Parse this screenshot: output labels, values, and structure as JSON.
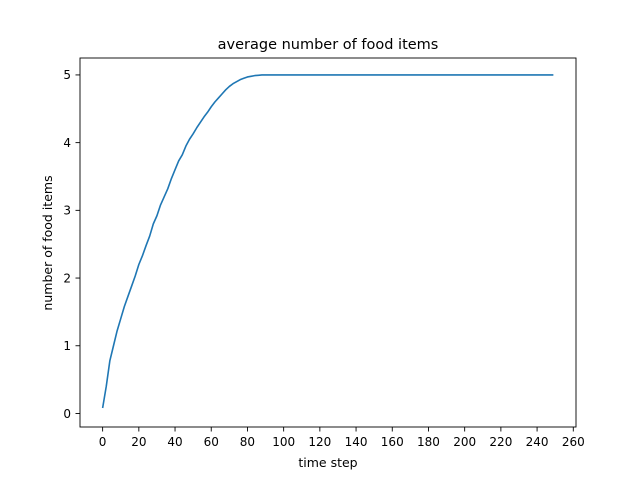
{
  "chart_data": {
    "type": "line",
    "title": "average number of food items",
    "xlabel": "time step",
    "ylabel": "number of food items",
    "xlim": [
      -12.5,
      261.5
    ],
    "ylim": [
      -0.2,
      5.25
    ],
    "xticks": [
      0,
      20,
      40,
      60,
      80,
      100,
      120,
      140,
      160,
      180,
      200,
      220,
      240,
      260
    ],
    "yticks": [
      0,
      1,
      2,
      3,
      4,
      5
    ],
    "grid": false,
    "legend": "none",
    "series": [
      {
        "color": "#1f77b4",
        "x": [
          0,
          2,
          4,
          6,
          8,
          10,
          12,
          14,
          16,
          18,
          20,
          22,
          24,
          26,
          28,
          30,
          32,
          34,
          36,
          38,
          40,
          42,
          44,
          46,
          48,
          50,
          52,
          54,
          56,
          58,
          60,
          62,
          64,
          66,
          68,
          70,
          72,
          74,
          76,
          78,
          80,
          82,
          84,
          86,
          88,
          90,
          95,
          100,
          110,
          120,
          140,
          160,
          180,
          200,
          220,
          240,
          249
        ],
        "y": [
          0.08,
          0.4,
          0.78,
          1.0,
          1.22,
          1.4,
          1.58,
          1.73,
          1.88,
          2.03,
          2.2,
          2.33,
          2.48,
          2.62,
          2.8,
          2.92,
          3.08,
          3.2,
          3.32,
          3.47,
          3.6,
          3.73,
          3.82,
          3.95,
          4.05,
          4.13,
          4.22,
          4.3,
          4.38,
          4.45,
          4.53,
          4.6,
          4.66,
          4.72,
          4.78,
          4.83,
          4.87,
          4.9,
          4.93,
          4.95,
          4.97,
          4.98,
          4.99,
          4.995,
          5.0,
          5.0,
          5.0,
          5.0,
          5.0,
          5.0,
          5.0,
          5.0,
          5.0,
          5.0,
          5.0,
          5.0,
          5.0
        ]
      }
    ]
  }
}
